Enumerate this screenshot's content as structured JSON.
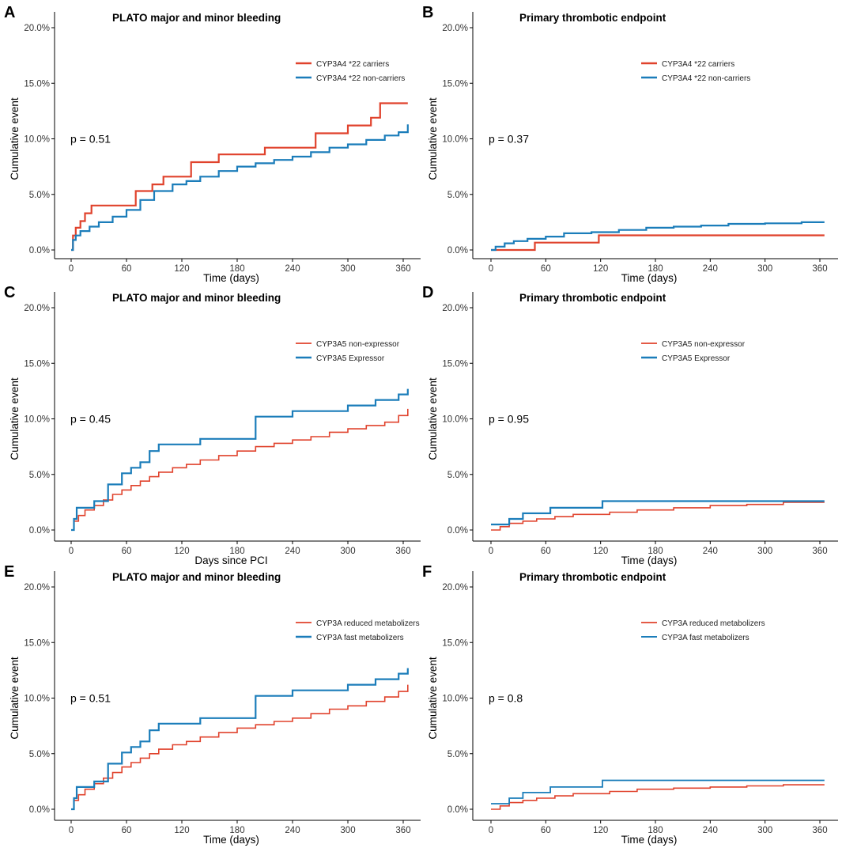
{
  "colors": {
    "red": "#e0422c",
    "blue": "#1b7dba"
  },
  "chart_data": [
    {
      "panel_label": "A",
      "type": "line",
      "step": true,
      "title": "PLATO major and minor bleeding",
      "xlabel": "Time (days)",
      "ylabel": "Cumulative event",
      "xlim": [
        0,
        365
      ],
      "ylim": [
        0,
        20
      ],
      "x_ticks": [
        "0",
        "60",
        "120",
        "180",
        "240",
        "300",
        "360"
      ],
      "y_ticks": [
        "0.0%",
        "5.0%",
        "10.0%",
        "15.0%",
        "20.0%"
      ],
      "annotation": "p = 0.51",
      "series": [
        {
          "name": "CYP3A4 *22 carriers",
          "color": "red",
          "width": 2.2,
          "x": [
            0,
            2,
            5,
            10,
            15,
            22,
            70,
            88,
            100,
            130,
            160,
            210,
            265,
            300,
            325,
            335,
            365
          ],
          "y": [
            0,
            1.3,
            2.0,
            2.6,
            3.3,
            4.0,
            5.3,
            5.9,
            6.6,
            7.9,
            8.6,
            9.2,
            10.5,
            11.2,
            11.9,
            13.2,
            13.2
          ]
        },
        {
          "name": "CYP3A4 *22 non-carriers",
          "color": "blue",
          "width": 2.2,
          "x": [
            0,
            2,
            5,
            10,
            20,
            30,
            45,
            60,
            75,
            90,
            110,
            125,
            140,
            160,
            180,
            200,
            220,
            240,
            260,
            280,
            300,
            320,
            340,
            355,
            365
          ],
          "y": [
            0,
            0.9,
            1.3,
            1.7,
            2.1,
            2.5,
            3.0,
            3.6,
            4.5,
            5.3,
            5.9,
            6.2,
            6.6,
            7.1,
            7.5,
            7.8,
            8.1,
            8.4,
            8.8,
            9.2,
            9.5,
            9.9,
            10.3,
            10.6,
            11.3
          ]
        }
      ]
    },
    {
      "panel_label": "B",
      "type": "line",
      "step": true,
      "title": "Primary thrombotic endpoint",
      "xlabel": "Time (days)",
      "ylabel": "Cumulative event",
      "xlim": [
        0,
        365
      ],
      "ylim": [
        0,
        20
      ],
      "x_ticks": [
        "0",
        "60",
        "120",
        "180",
        "240",
        "300",
        "360"
      ],
      "y_ticks": [
        "0.0%",
        "5.0%",
        "10.0%",
        "15.0%",
        "20.0%"
      ],
      "annotation": "p = 0.37",
      "series": [
        {
          "name": "CYP3A4 *22 carriers",
          "color": "red",
          "width": 2.2,
          "x": [
            0,
            48,
            118,
            365
          ],
          "y": [
            0,
            0.66,
            1.32,
            1.32
          ]
        },
        {
          "name": "CYP3A4 *22 non-carriers",
          "color": "blue",
          "width": 2.2,
          "x": [
            0,
            5,
            15,
            25,
            40,
            60,
            80,
            110,
            140,
            170,
            200,
            230,
            260,
            300,
            340,
            365
          ],
          "y": [
            0,
            0.3,
            0.6,
            0.8,
            1.0,
            1.2,
            1.5,
            1.6,
            1.8,
            2.0,
            2.1,
            2.2,
            2.35,
            2.4,
            2.5,
            2.5
          ]
        }
      ]
    },
    {
      "panel_label": "C",
      "type": "line",
      "step": true,
      "title": "PLATO major and minor bleeding",
      "xlabel": "Days since PCI",
      "ylabel": "Cumulative event",
      "xlim": [
        0,
        365
      ],
      "ylim": [
        0,
        20
      ],
      "x_ticks": [
        "0",
        "60",
        "120",
        "180",
        "240",
        "300",
        "360"
      ],
      "y_ticks": [
        "0.0%",
        "5.0%",
        "10.0%",
        "15.0%",
        "20.0%"
      ],
      "annotation": "p = 0.45",
      "series": [
        {
          "name": "CYP3A5 non-expressor",
          "color": "red",
          "width": 1.6,
          "x": [
            0,
            3,
            8,
            15,
            25,
            35,
            45,
            55,
            65,
            75,
            85,
            95,
            110,
            125,
            140,
            160,
            180,
            200,
            220,
            240,
            260,
            280,
            300,
            320,
            340,
            355,
            365
          ],
          "y": [
            0,
            0.8,
            1.3,
            1.8,
            2.2,
            2.7,
            3.2,
            3.6,
            4.0,
            4.4,
            4.8,
            5.2,
            5.6,
            5.9,
            6.3,
            6.7,
            7.1,
            7.5,
            7.8,
            8.1,
            8.4,
            8.8,
            9.1,
            9.4,
            9.7,
            10.3,
            10.9
          ]
        },
        {
          "name": "CYP3A5 Expressor",
          "color": "blue",
          "width": 2.2,
          "x": [
            0,
            3,
            6,
            25,
            40,
            55,
            65,
            75,
            85,
            95,
            140,
            200,
            240,
            300,
            330,
            355,
            365
          ],
          "y": [
            0,
            1.0,
            2.0,
            2.6,
            4.1,
            5.1,
            5.6,
            6.1,
            7.1,
            7.7,
            8.2,
            10.2,
            10.7,
            11.2,
            11.7,
            12.2,
            12.7
          ]
        }
      ]
    },
    {
      "panel_label": "D",
      "type": "line",
      "step": true,
      "title": "Primary thrombotic endpoint",
      "xlabel": "Time (days)",
      "ylabel": "Cumulative event",
      "xlim": [
        0,
        365
      ],
      "ylim": [
        0,
        20
      ],
      "x_ticks": [
        "0",
        "60",
        "120",
        "180",
        "240",
        "300",
        "360"
      ],
      "y_ticks": [
        "0.0%",
        "5.0%",
        "10.0%",
        "15.0%",
        "20.0%"
      ],
      "annotation": "p = 0.95",
      "series": [
        {
          "name": "CYP3A5 non-expressor",
          "color": "red",
          "width": 1.6,
          "x": [
            0,
            10,
            20,
            35,
            50,
            70,
            90,
            130,
            160,
            200,
            240,
            280,
            320,
            365
          ],
          "y": [
            0,
            0.3,
            0.6,
            0.8,
            1.0,
            1.2,
            1.4,
            1.6,
            1.8,
            2.0,
            2.2,
            2.3,
            2.5,
            2.5
          ]
        },
        {
          "name": "CYP3A5 Expressor",
          "color": "blue",
          "width": 2.2,
          "x": [
            0,
            20,
            35,
            65,
            122,
            365
          ],
          "y": [
            0.5,
            1.0,
            1.5,
            2.0,
            2.6,
            2.6
          ]
        }
      ]
    },
    {
      "panel_label": "E",
      "type": "line",
      "step": true,
      "title": "PLATO major and minor bleeding",
      "xlabel": "Time (days)",
      "ylabel": "Cumulative event",
      "xlim": [
        0,
        365
      ],
      "ylim": [
        0,
        20
      ],
      "x_ticks": [
        "0",
        "60",
        "120",
        "180",
        "240",
        "300",
        "360"
      ],
      "y_ticks": [
        "0.0%",
        "5.0%",
        "10.0%",
        "15.0%",
        "20.0%"
      ],
      "annotation": "p = 0.51",
      "series": [
        {
          "name": "CYP3A reduced metabolizers",
          "color": "red",
          "width": 1.6,
          "x": [
            0,
            3,
            8,
            15,
            25,
            35,
            45,
            55,
            65,
            75,
            85,
            95,
            110,
            125,
            140,
            160,
            180,
            200,
            220,
            240,
            260,
            280,
            300,
            320,
            340,
            355,
            365
          ],
          "y": [
            0,
            0.8,
            1.3,
            1.8,
            2.3,
            2.8,
            3.3,
            3.8,
            4.2,
            4.6,
            5.0,
            5.4,
            5.8,
            6.1,
            6.5,
            6.9,
            7.3,
            7.6,
            7.9,
            8.2,
            8.6,
            9.0,
            9.3,
            9.7,
            10.1,
            10.6,
            11.2
          ]
        },
        {
          "name": "CYP3A fast metabolizers",
          "color": "blue",
          "width": 2.2,
          "x": [
            0,
            3,
            6,
            25,
            40,
            55,
            65,
            75,
            85,
            95,
            140,
            200,
            240,
            300,
            330,
            355,
            365
          ],
          "y": [
            0,
            1.0,
            2.0,
            2.5,
            4.1,
            5.1,
            5.6,
            6.1,
            7.1,
            7.7,
            8.2,
            10.2,
            10.7,
            11.2,
            11.7,
            12.2,
            12.7
          ]
        }
      ]
    },
    {
      "panel_label": "F",
      "type": "line",
      "step": true,
      "title": "Primary thrombotic endpoint",
      "xlabel": "Time (days)",
      "ylabel": "Cumulative event",
      "xlim": [
        0,
        365
      ],
      "ylim": [
        0,
        20
      ],
      "x_ticks": [
        "0",
        "60",
        "120",
        "180",
        "240",
        "300",
        "360"
      ],
      "y_ticks": [
        "0.0%",
        "5.0%",
        "10.0%",
        "15.0%",
        "20.0%"
      ],
      "annotation": "p = 0.8",
      "series": [
        {
          "name": "CYP3A reduced metabolizers",
          "color": "red",
          "width": 1.6,
          "x": [
            0,
            10,
            20,
            35,
            50,
            70,
            90,
            130,
            160,
            200,
            240,
            280,
            320,
            365
          ],
          "y": [
            0,
            0.3,
            0.6,
            0.8,
            1.0,
            1.2,
            1.4,
            1.6,
            1.8,
            1.9,
            2.0,
            2.1,
            2.2,
            2.2
          ]
        },
        {
          "name": "CYP3A fast metabolizers",
          "color": "blue",
          "width": 1.8,
          "x": [
            0,
            20,
            35,
            65,
            122,
            365
          ],
          "y": [
            0.5,
            1.0,
            1.5,
            2.0,
            2.6,
            2.6
          ]
        }
      ]
    }
  ]
}
